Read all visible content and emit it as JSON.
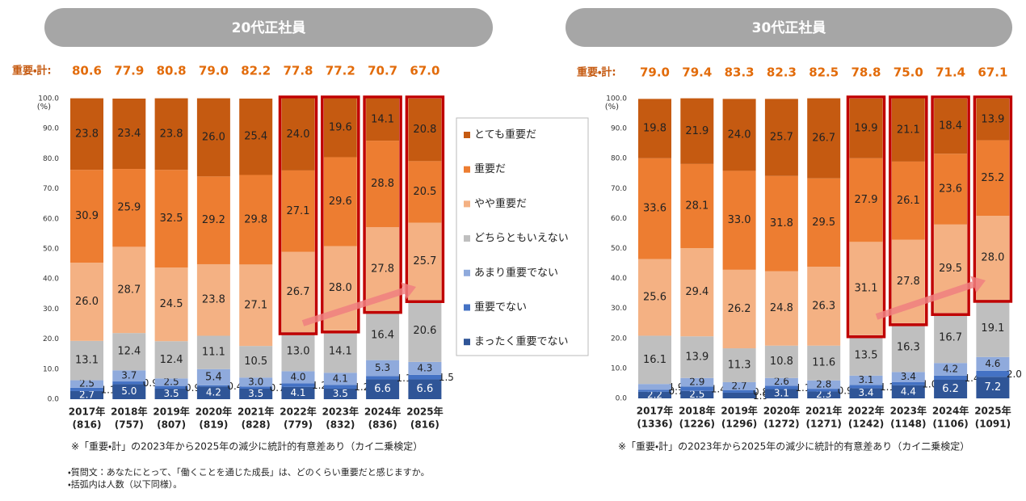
{
  "chart_data": [
    {
      "type": "stacked_bar",
      "title": "20代正社員",
      "totals": {
        "label": "重要・計:",
        "values": [
          80.6,
          77.9,
          80.8,
          79.0,
          82.2,
          77.8,
          77.2,
          70.7,
          67.0
        ],
        "value_labels": [
          "80.6",
          "77.9",
          "80.8",
          "79.0",
          "82.2",
          "77.8",
          "77.2",
          "70.7",
          "67.0"
        ]
      },
      "categories": [
        "2017年",
        "2018年",
        "2019年",
        "2020年",
        "2021年",
        "2022年",
        "2023年",
        "2024年",
        "2025年"
      ],
      "sample_sizes": [
        "(816)",
        "(757)",
        "(807)",
        "(819)",
        "(828)",
        "(779)",
        "(832)",
        "(836)",
        "(816)"
      ],
      "y_unit": "(%)",
      "ylim": [
        0,
        100
      ],
      "yticks": [
        {
          "value": 0,
          "label": "0.0"
        },
        {
          "value": 10,
          "label": "10.0"
        },
        {
          "value": 20,
          "label": "20.0"
        },
        {
          "value": 30,
          "label": "30.0"
        },
        {
          "value": 40,
          "label": "40.0"
        },
        {
          "value": 50,
          "label": "50.0"
        },
        {
          "value": 60,
          "label": "60.0"
        },
        {
          "value": 70,
          "label": "70.0"
        },
        {
          "value": 80,
          "label": "80.0"
        },
        {
          "value": 90,
          "label": "90.0"
        },
        {
          "value": 100,
          "label": "100.0"
        }
      ],
      "grid": false,
      "legend": "right",
      "series": [
        {
          "name": "とても重要だ",
          "color": "#c55a11",
          "values": [
            23.8,
            23.4,
            23.8,
            26.0,
            25.4,
            24.0,
            19.6,
            14.1,
            20.8
          ],
          "value_labels": [
            "23.8",
            "23.4",
            "23.8",
            "26.0",
            "25.4",
            "24.0",
            "19.6",
            "14.1",
            "20.8"
          ]
        },
        {
          "name": "重要だ",
          "color": "#ed7d31",
          "values": [
            30.9,
            25.9,
            32.5,
            29.2,
            29.8,
            27.1,
            29.6,
            28.8,
            20.5
          ],
          "value_labels": [
            "30.9",
            "25.9",
            "32.5",
            "29.2",
            "29.8",
            "27.1",
            "29.6",
            "28.8",
            "20.5"
          ]
        },
        {
          "name": "やや重要だ",
          "color": "#f4b183",
          "values": [
            26.0,
            28.7,
            24.5,
            23.8,
            27.1,
            26.7,
            28.0,
            27.8,
            25.7
          ],
          "value_labels": [
            "26.0",
            "28.7",
            "24.5",
            "23.8",
            "27.1",
            "26.7",
            "28.0",
            "27.8",
            "25.7"
          ]
        },
        {
          "name": "どちらともいえない",
          "color": "#bfbfbf",
          "values": [
            13.1,
            12.4,
            12.4,
            11.1,
            10.5,
            13.0,
            14.1,
            16.4,
            20.6
          ],
          "value_labels": [
            "13.1",
            "12.4",
            "12.4",
            "11.1",
            "10.5",
            "13.0",
            "14.1",
            "16.4",
            "20.6"
          ]
        },
        {
          "name": "あまり重要でない",
          "color": "#8faadc",
          "values": [
            2.5,
            3.7,
            2.5,
            5.4,
            3.0,
            4.0,
            4.1,
            5.3,
            4.3
          ],
          "value_labels": [
            "2.5",
            "3.7",
            "2.5",
            "5.4",
            "3.0",
            "4.0",
            "4.1",
            "5.3",
            "4.3"
          ]
        },
        {
          "name": "重要でない",
          "color": "#4472c4",
          "values": [
            1.1,
            0.9,
            0.9,
            0.4,
            0.7,
            1.2,
            1.2,
            1.1,
            1.5
          ],
          "value_labels": [
            "1.1",
            "0.9",
            "0.9",
            "0.4",
            "0.7",
            "1.2",
            "1.2",
            "1.1",
            "1.5"
          ]
        },
        {
          "name": "まったく重要でない",
          "color": "#2f5597",
          "values": [
            2.7,
            5.0,
            3.5,
            4.2,
            3.5,
            4.1,
            3.5,
            6.6,
            6.6
          ],
          "value_labels": [
            "2.7",
            "5.0",
            "3.5",
            "4.2",
            "3.5",
            "4.1",
            "3.5",
            "6.6",
            "6.6"
          ]
        }
      ],
      "notes": [
        "※「重要・計」の2023年から2025年の減少に統計的有意差あり（カイ二乗検定）",
        "・質問文：あなたにとって、「働くことを通じた成長」は、どのくらい重要だと感じますか。",
        "・括弧内は人数（以下同様）。"
      ]
    },
    {
      "type": "stacked_bar",
      "title": "30代正社員",
      "totals": {
        "label": "重要・計:",
        "values": [
          79.0,
          79.4,
          83.3,
          82.3,
          82.5,
          78.8,
          75.0,
          71.4,
          67.1
        ],
        "value_labels": [
          "79.0",
          "79.4",
          "83.3",
          "82.3",
          "82.5",
          "78.8",
          "75.0",
          "71.4",
          "67.1"
        ]
      },
      "categories": [
        "2017年",
        "2018年",
        "2019年",
        "2020年",
        "2021年",
        "2022年",
        "2023年",
        "2024年",
        "2025年"
      ],
      "sample_sizes": [
        "(1336)",
        "(1226)",
        "(1296)",
        "(1272)",
        "(1271)",
        "(1242)",
        "(1148)",
        "(1106)",
        "(1091)"
      ],
      "y_unit": "(%)",
      "ylim": [
        0,
        100
      ],
      "yticks": [
        {
          "value": 0,
          "label": "0.0"
        },
        {
          "value": 10,
          "label": "10.0"
        },
        {
          "value": 20,
          "label": "20.0"
        },
        {
          "value": 30,
          "label": "30.0"
        },
        {
          "value": 40,
          "label": "40.0"
        },
        {
          "value": 50,
          "label": "50.0"
        },
        {
          "value": 60,
          "label": "60.0"
        },
        {
          "value": 70,
          "label": "70.0"
        },
        {
          "value": 80,
          "label": "80.0"
        },
        {
          "value": 90,
          "label": "90.0"
        },
        {
          "value": 100,
          "label": "100.0"
        }
      ],
      "grid": false,
      "legend": false,
      "series": [
        {
          "name": "とても重要だ",
          "color": "#c55a11",
          "values": [
            19.8,
            21.9,
            24.0,
            25.7,
            26.7,
            19.9,
            21.1,
            18.4,
            13.9
          ],
          "value_labels": [
            "19.8",
            "21.9",
            "24.0",
            "25.7",
            "26.7",
            "19.9",
            "21.1",
            "18.4",
            "13.9"
          ]
        },
        {
          "name": "重要だ",
          "color": "#ed7d31",
          "values": [
            33.6,
            28.1,
            33.0,
            31.8,
            29.5,
            27.9,
            26.1,
            23.6,
            25.2
          ],
          "value_labels": [
            "33.6",
            "28.1",
            "33.0",
            "31.8",
            "29.5",
            "27.9",
            "26.1",
            "23.6",
            "25.2"
          ]
        },
        {
          "name": "やや重要だ",
          "color": "#f4b183",
          "values": [
            25.6,
            29.4,
            26.2,
            24.8,
            26.3,
            31.1,
            27.8,
            29.5,
            28.0
          ],
          "value_labels": [
            "25.6",
            "29.4",
            "26.2",
            "24.8",
            "26.3",
            "31.1",
            "27.8",
            "29.5",
            "28.0"
          ]
        },
        {
          "name": "どちらともいえない",
          "color": "#bfbfbf",
          "values": [
            16.1,
            13.9,
            11.3,
            10.8,
            11.6,
            13.5,
            16.3,
            16.7,
            19.1
          ],
          "value_labels": [
            "16.1",
            "13.9",
            "11.3",
            "10.8",
            "11.6",
            "13.5",
            "16.3",
            "16.7",
            "19.1"
          ]
        },
        {
          "name": "あまり重要でない",
          "color": "#8faadc",
          "values": [
            1.9,
            2.9,
            2.7,
            2.6,
            2.8,
            3.1,
            3.4,
            4.2,
            4.6
          ],
          "value_labels": [
            "1.9",
            "2.9",
            "2.7",
            "2.6",
            "2.8",
            "3.1",
            "3.4",
            "4.2",
            "4.6"
          ]
        },
        {
          "name": "重要でない",
          "color": "#4472c4",
          "values": [
            0.7,
            1.4,
            0.8,
            1.1,
            0.9,
            1.1,
            1.0,
            1.4,
            2.0
          ],
          "value_labels": [
            "0.7",
            "1.4",
            "0.8",
            "1.1",
            "0.9",
            "1.1",
            "1.0",
            "1.4",
            "2.0"
          ]
        },
        {
          "name": "まったく重要でない",
          "color": "#2f5597",
          "values": [
            2.2,
            2.5,
            1.9,
            3.1,
            2.3,
            3.4,
            4.4,
            6.2,
            7.2
          ],
          "value_labels": [
            "2.2",
            "2.5",
            "1.9",
            "3.1",
            "2.3",
            "3.4",
            "4.4",
            "6.2",
            "7.2"
          ]
        }
      ],
      "notes": [
        "※「重要・計」の2023年から2025年の減少に統計的有意差あり（カイ二乗検定）"
      ]
    }
  ]
}
